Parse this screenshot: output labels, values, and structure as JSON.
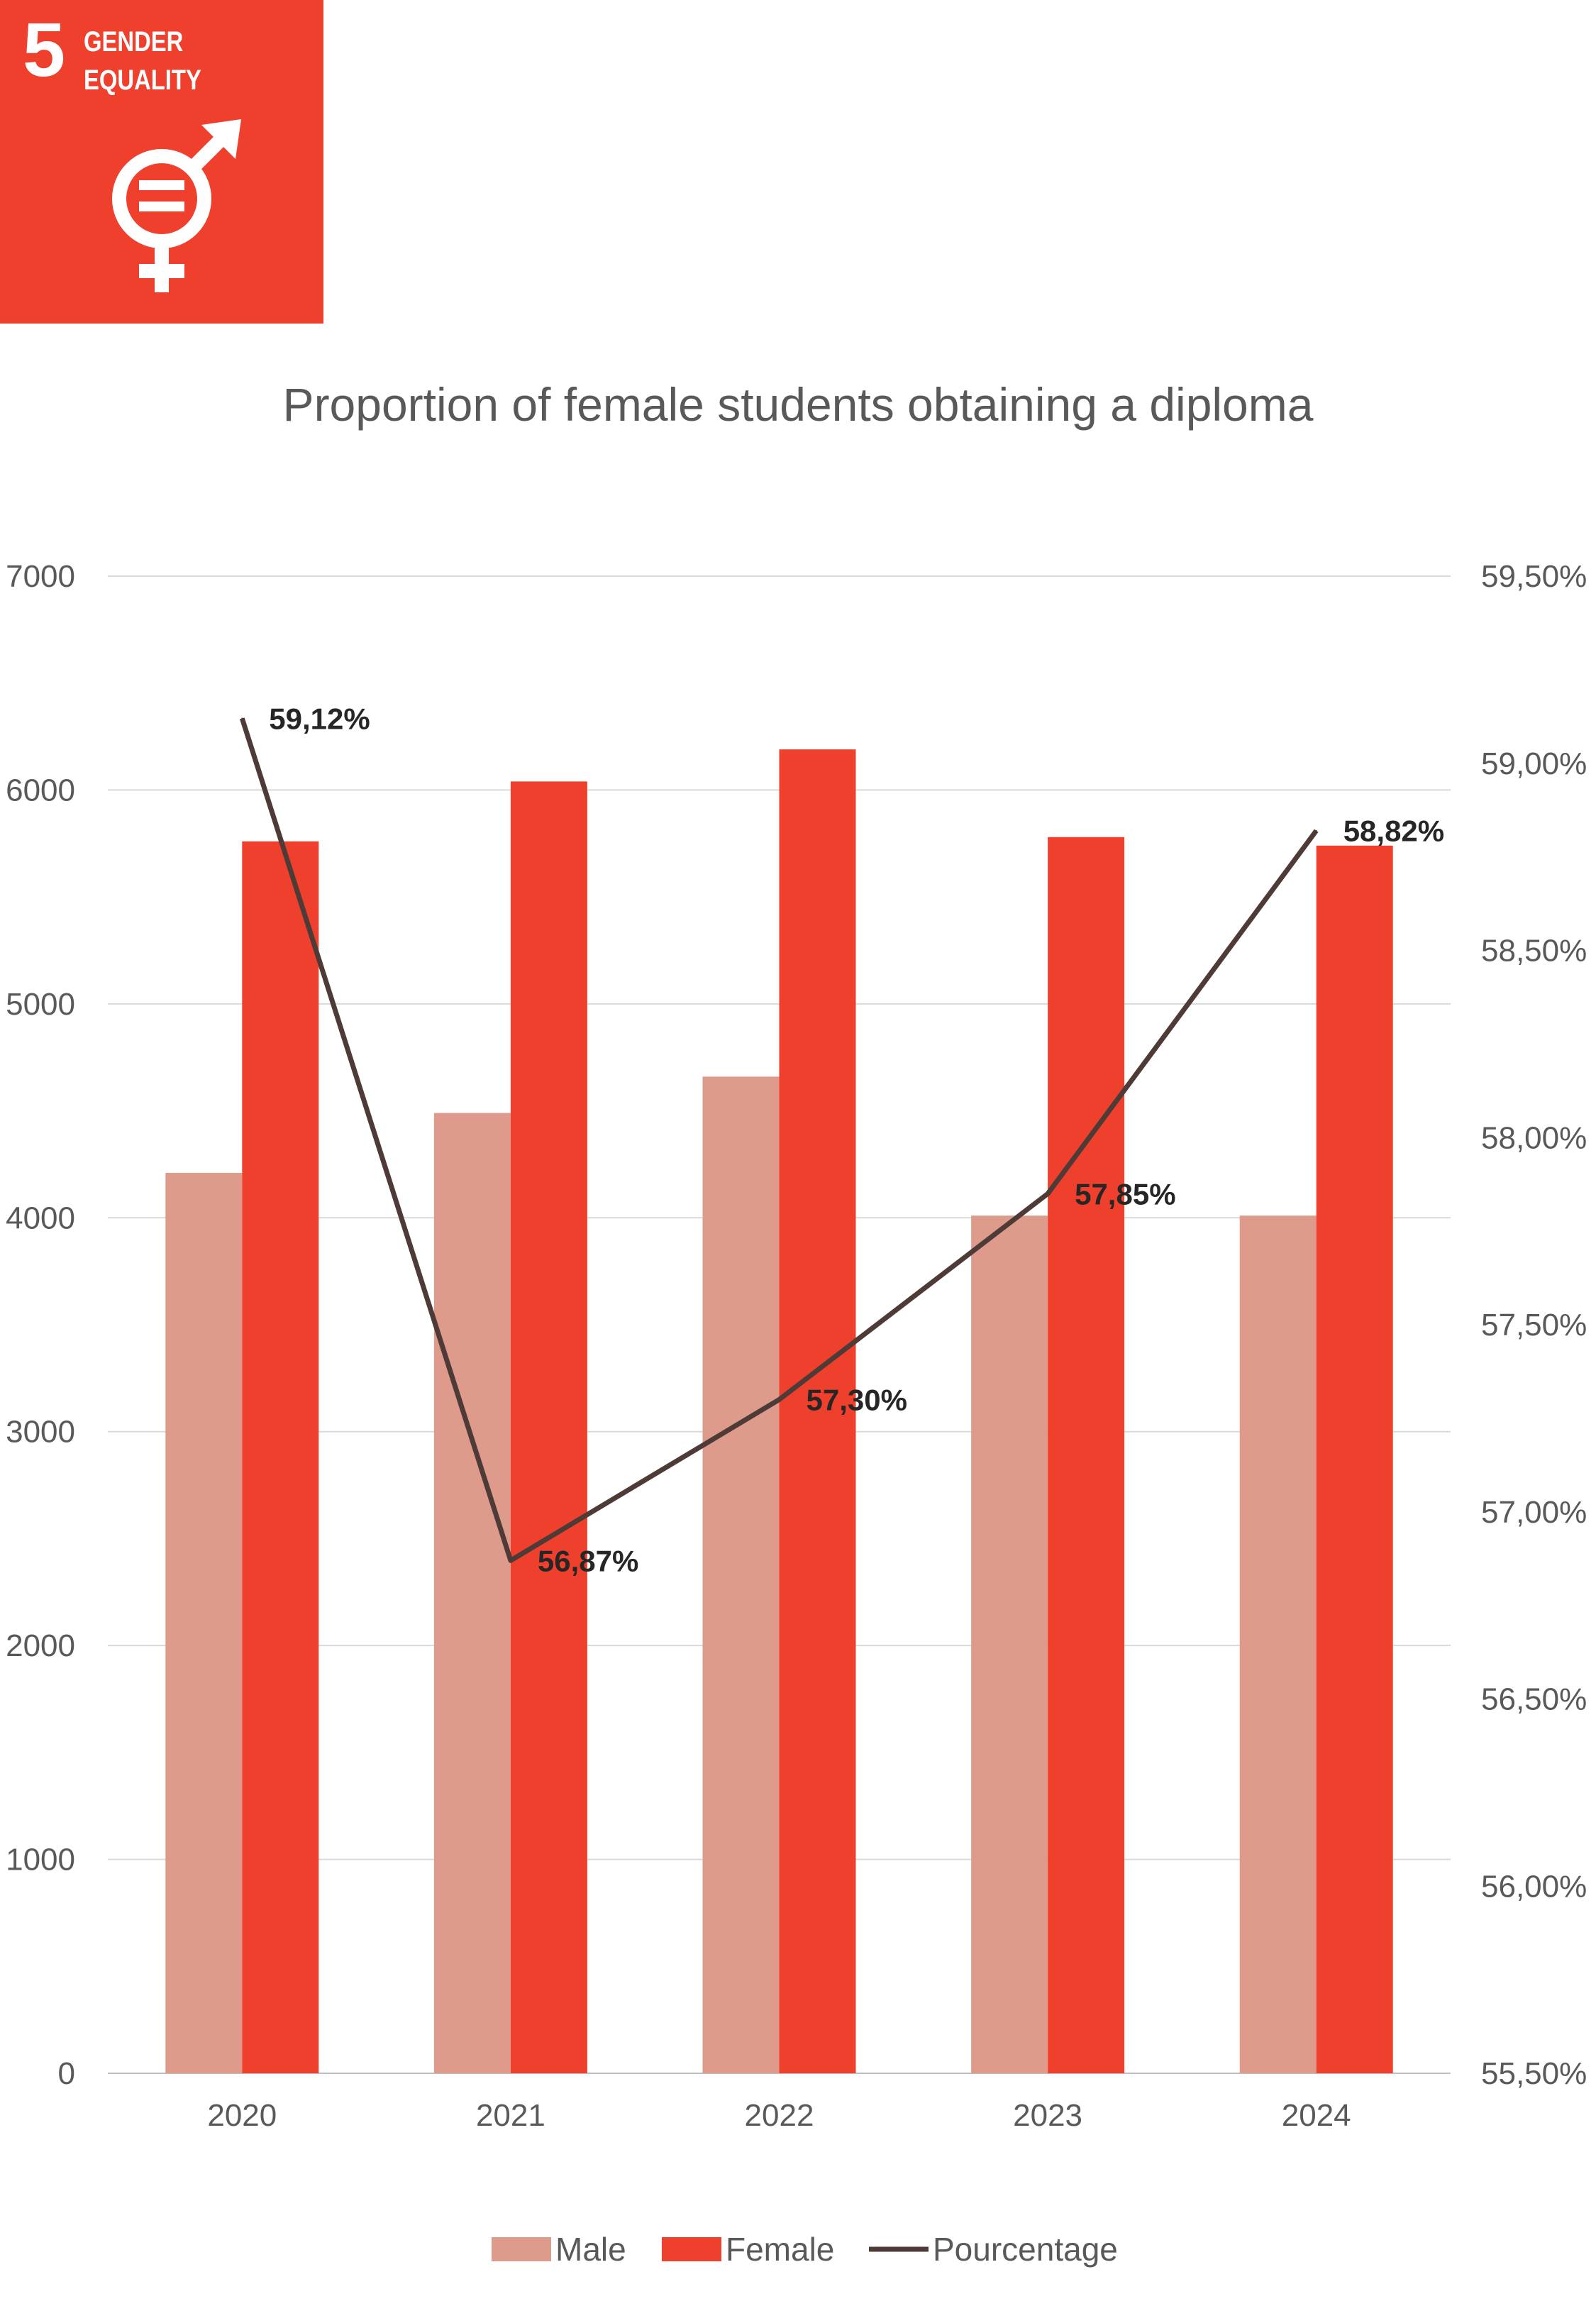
{
  "badge": {
    "number": "5",
    "line1": "GENDER",
    "line2": "EQUALITY",
    "color": "#EF402D",
    "icon": "gender-equality-icon"
  },
  "chart_data": {
    "type": "bar",
    "title": "Proportion of female students obtaining a diploma",
    "categories": [
      "2020",
      "2021",
      "2022",
      "2023",
      "2024"
    ],
    "series": [
      {
        "name": "Male",
        "type": "bar",
        "axis": "left",
        "color": "#DE9B8B",
        "values": [
          4210,
          4490,
          4660,
          4010,
          4010
        ]
      },
      {
        "name": "Female",
        "type": "bar",
        "axis": "left",
        "color": "#EF402D",
        "values": [
          5760,
          6040,
          6190,
          5780,
          5740
        ]
      },
      {
        "name": "Pourcentage",
        "type": "line",
        "axis": "right",
        "color": "#4E3B37",
        "values": [
          59.12,
          56.87,
          57.3,
          57.85,
          58.82
        ],
        "labels": [
          "59,12%",
          "56,87%",
          "57,30%",
          "57,85%",
          "58,82%"
        ]
      }
    ],
    "y_left": {
      "min": 0,
      "max": 7000,
      "step": 1000,
      "ticks": [
        "0",
        "1000",
        "2000",
        "3000",
        "4000",
        "5000",
        "6000",
        "7000"
      ]
    },
    "y_right": {
      "min": 55.5,
      "max": 59.5,
      "step": 0.5,
      "ticks": [
        "55,50%",
        "56,00%",
        "56,50%",
        "57,00%",
        "57,50%",
        "58,00%",
        "58,50%",
        "59,00%",
        "59,50%"
      ]
    },
    "grid": true,
    "legend_position": "bottom"
  }
}
